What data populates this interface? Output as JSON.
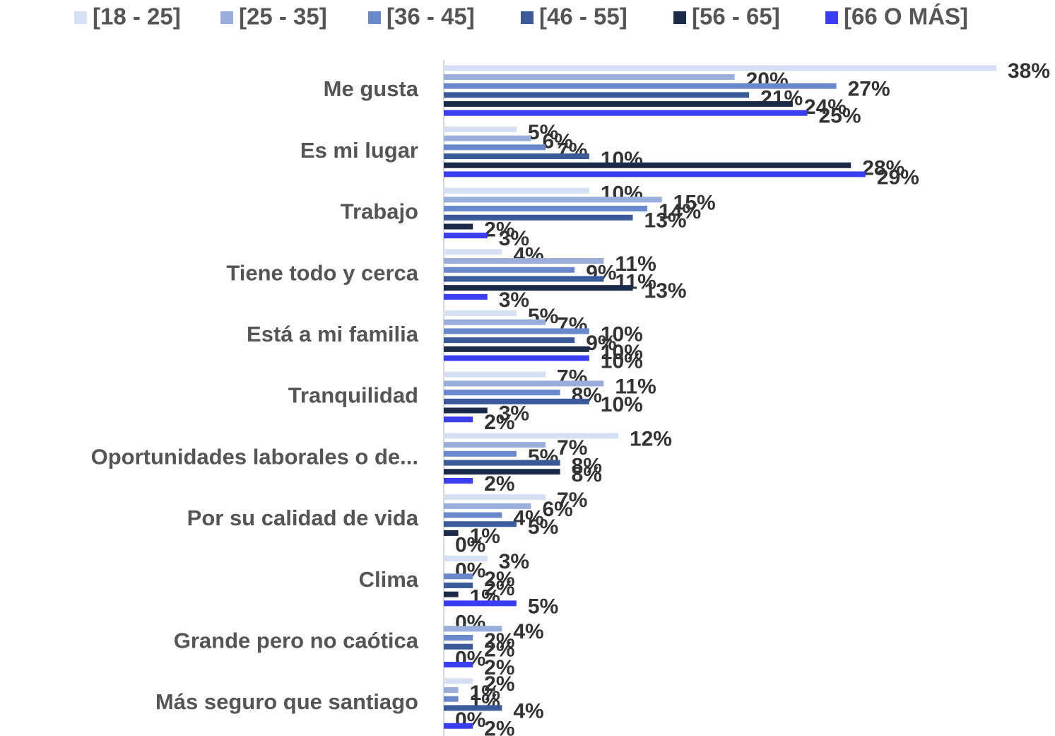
{
  "chart_data": {
    "type": "hbar",
    "categories": [
      "Me gusta",
      "Es mi lugar",
      "Trabajo",
      "Tiene todo y cerca",
      "Está a mi familia",
      "Tranquilidad",
      "Oportunidades laborales o de...",
      "Por su calidad de vida",
      "Clima",
      "Grande pero no caótica",
      "Más seguro que santiago"
    ],
    "series": [
      {
        "name": "[18 - 25]",
        "color": "#d6e0f5",
        "values": [
          38,
          5,
          10,
          4,
          5,
          7,
          12,
          7,
          3,
          0,
          2
        ],
        "value_labels": [
          "38%",
          "5%",
          "10%",
          "4%",
          "5%",
          "7%",
          "12%",
          "7%",
          "3%",
          "0%",
          "2%"
        ]
      },
      {
        "name": "[25 - 35]",
        "color": "#9aaedc",
        "values": [
          20,
          6,
          15,
          11,
          7,
          11,
          7,
          6,
          0,
          4,
          1
        ],
        "value_labels": [
          "20%",
          "6%",
          "15%",
          "11%",
          "7%",
          "11%",
          "7%",
          "6%",
          "0%",
          "4%",
          "1%"
        ]
      },
      {
        "name": "[36 - 45]",
        "color": "#6a88cc",
        "values": [
          27,
          7,
          14,
          9,
          10,
          8,
          5,
          4,
          2,
          2,
          1
        ],
        "value_labels": [
          "27%",
          "7%",
          "14%",
          "9%",
          "10%",
          "8%",
          "5%",
          "4%",
          "2%",
          "2%",
          "1%"
        ]
      },
      {
        "name": "[46 - 55]",
        "color": "#3a5a9a",
        "values": [
          21,
          10,
          13,
          11,
          9,
          10,
          8,
          5,
          2,
          2,
          4
        ],
        "value_labels": [
          "21%",
          "10%",
          "13%",
          "11%",
          "9%",
          "10%",
          "8%",
          "5%",
          "2%",
          "2%",
          "4%"
        ]
      },
      {
        "name": "[56 - 65]",
        "color": "#1c2a4a",
        "values": [
          24,
          28,
          2,
          13,
          10,
          3,
          8,
          1,
          1,
          0,
          0
        ],
        "value_labels": [
          "24%",
          "28%",
          "2%",
          "13%",
          "10%",
          "3%",
          "8%",
          "1%",
          "1%",
          "0%",
          "0%"
        ]
      },
      {
        "name": "[66 O MÁS]",
        "color": "#3a3ef0",
        "values": [
          25,
          29,
          3,
          3,
          10,
          2,
          2,
          0,
          5,
          2,
          2
        ],
        "value_labels": [
          "25%",
          "29%",
          "3%",
          "3%",
          "10%",
          "2%",
          "2%",
          "0%",
          "5%",
          "2%",
          "2%"
        ]
      }
    ],
    "legend": "top"
  }
}
